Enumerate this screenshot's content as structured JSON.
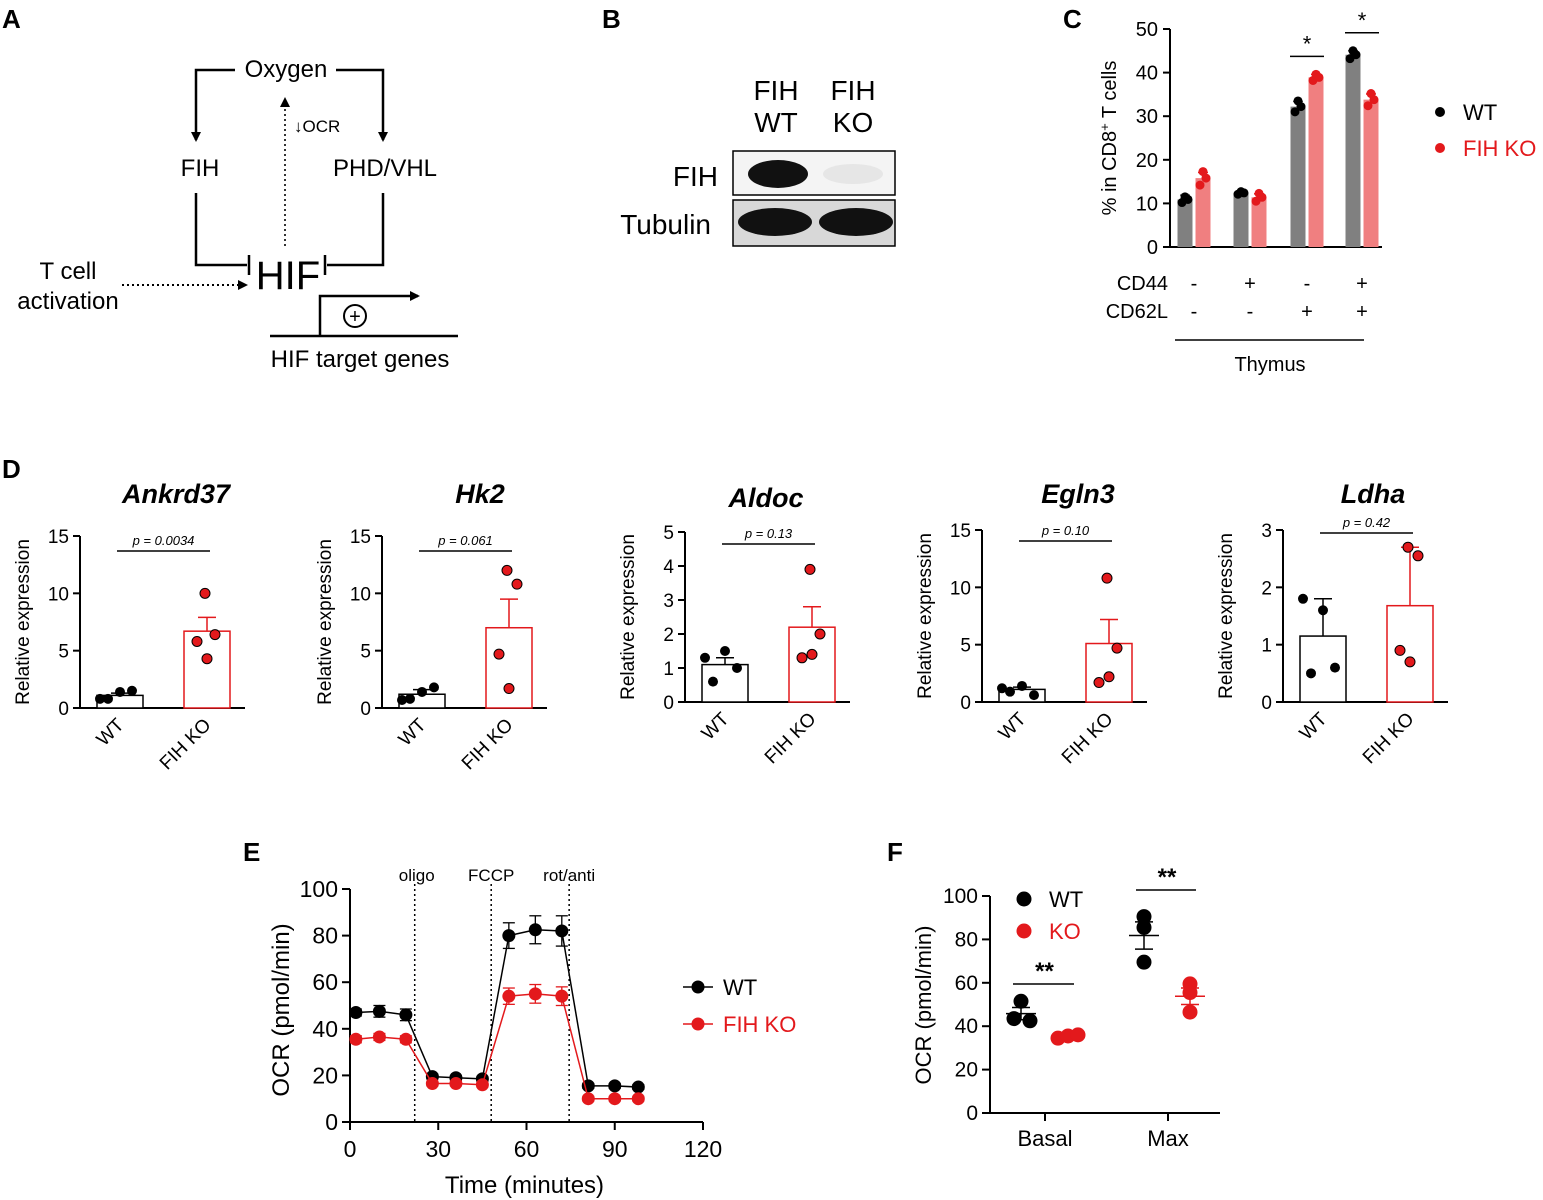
{
  "colors": {
    "wt": "#000000",
    "ko": "#e3191c",
    "wt_bar": "#808080",
    "ko_bar": "#f07f80",
    "axis": "#000000"
  },
  "panels": {
    "A": "A",
    "B": "B",
    "C": "C",
    "D": "D",
    "E": "E",
    "F": "F"
  },
  "diagram": {
    "oxygen": "Oxygen",
    "fih": "FIH",
    "phd": "PHD/VHL",
    "ocr": "↓OCR",
    "hif": "HIF",
    "tcell1": "T cell",
    "tcell2": "activation",
    "plus": "+",
    "targets": "HIF target genes"
  },
  "blot": {
    "fih_wt_1": "FIH",
    "fih_wt_2": "WT",
    "fih_ko_1": "FIH",
    "fih_ko_2": "KO",
    "row1": "FIH",
    "row2": "Tubulin"
  },
  "chart_data": [
    {
      "id": "C",
      "type": "bar",
      "ylabel_main": "% in CD8",
      "ylabel_sup": "+",
      "ylabel_end": " T cells",
      "ylim": [
        0,
        50
      ],
      "yticks": [
        "0",
        "10",
        "20",
        "30",
        "40",
        "50"
      ],
      "groups": [
        {
          "cd44": "-",
          "cd62l": "-",
          "wt": 10.9,
          "ko": 15.8,
          "wt_err": 1.0,
          "ko_err": 1.3,
          "wt_pts": [
            10.2,
            11.5,
            10.9
          ],
          "ko_pts": [
            14.2,
            17.3,
            15.8
          ],
          "sig": ""
        },
        {
          "cd44": "+",
          "cd62l": "-",
          "wt": 12.4,
          "ko": 11.4,
          "wt_err": 0.3,
          "ko_err": 0.8,
          "wt_pts": [
            12.1,
            12.7,
            12.4
          ],
          "ko_pts": [
            10.5,
            12.3,
            11.4
          ],
          "sig": ""
        },
        {
          "cd44": "-",
          "cd62l": "+",
          "wt": 32.2,
          "ko": 38.9,
          "wt_err": 1.2,
          "ko_err": 0.7,
          "wt_pts": [
            31.0,
            33.5,
            32.2
          ],
          "ko_pts": [
            38.2,
            39.6,
            38.9
          ],
          "sig": "*"
        },
        {
          "cd44": "+",
          "cd62l": "+",
          "wt": 44.1,
          "ko": 33.8,
          "wt_err": 0.9,
          "ko_err": 1.3,
          "wt_pts": [
            43.2,
            45.0,
            44.1
          ],
          "ko_pts": [
            32.4,
            35.2,
            33.8
          ],
          "sig": "*"
        }
      ],
      "row1_label": "CD44",
      "row2_label": "CD62L",
      "group_label": "Thymus",
      "legend": [
        {
          "name": "WT"
        },
        {
          "name": "FIH KO"
        }
      ]
    },
    {
      "id": "D",
      "type": "bar",
      "ylabel": "Relative expression",
      "categories": [
        "WT",
        "FIH KO"
      ],
      "genes": [
        {
          "name": "Ankrd37",
          "p": "p = 0.0034",
          "ylim": [
            0,
            15
          ],
          "yticks": [
            "0",
            "5",
            "10",
            "15"
          ],
          "wt": 1.1,
          "wt_err": 0.2,
          "wt_pts": [
            0.8,
            1.4,
            1.5,
            0.8
          ],
          "ko": 6.7,
          "ko_err": 1.2,
          "ko_pts": [
            10.0,
            6.4,
            5.8,
            4.3
          ]
        },
        {
          "name": "Hk2",
          "p": "p = 0.061",
          "ylim": [
            0,
            15
          ],
          "yticks": [
            "0",
            "5",
            "10",
            "15"
          ],
          "wt": 1.2,
          "wt_err": 0.4,
          "wt_pts": [
            0.7,
            1.4,
            1.8,
            0.8
          ],
          "ko": 7.0,
          "ko_err": 2.5,
          "ko_pts": [
            12.0,
            10.8,
            4.7,
            1.7
          ]
        },
        {
          "name": "Aldoc",
          "p": "p = 0.13",
          "ylim": [
            0,
            5
          ],
          "yticks": [
            "0",
            "1",
            "2",
            "3",
            "4",
            "5"
          ],
          "wt": 1.1,
          "wt_err": 0.2,
          "wt_pts": [
            1.3,
            1.5,
            1.0,
            0.6
          ],
          "ko": 2.2,
          "ko_err": 0.6,
          "ko_pts": [
            3.9,
            2.0,
            1.3,
            1.4
          ]
        },
        {
          "name": "Egln3",
          "p": "p = 0.10",
          "ylim": [
            0,
            15
          ],
          "yticks": [
            "0",
            "5",
            "10",
            "15"
          ],
          "wt": 1.1,
          "wt_err": 0.2,
          "wt_pts": [
            1.2,
            1.4,
            0.6,
            0.9
          ],
          "ko": 5.1,
          "ko_err": 2.1,
          "ko_pts": [
            10.8,
            4.7,
            1.7,
            2.2
          ]
        },
        {
          "name": "Ldha",
          "p": "p = 0.42",
          "ylim": [
            0,
            3
          ],
          "yticks": [
            "0",
            "1",
            "2",
            "3"
          ],
          "wt": 1.15,
          "wt_err": 0.65,
          "wt_pts": [
            1.8,
            1.6,
            0.6,
            0.5
          ],
          "ko": 1.68,
          "ko_err": 1.02,
          "ko_pts": [
            2.7,
            2.55,
            0.9,
            0.7
          ]
        }
      ]
    },
    {
      "id": "E",
      "type": "line",
      "xlabel": "Time (minutes)",
      "ylabel": "OCR (pmol/min)",
      "xlim": [
        0,
        120
      ],
      "ylim": [
        0,
        100
      ],
      "xticks": [
        "0",
        "30",
        "60",
        "90",
        "120"
      ],
      "yticks": [
        "0",
        "20",
        "40",
        "60",
        "80",
        "100"
      ],
      "x": [
        2,
        10,
        19,
        28,
        36,
        45,
        54,
        63,
        72,
        81,
        90,
        98
      ],
      "series": [
        {
          "name": "WT",
          "values": [
            47,
            47.5,
            46,
            19.5,
            19,
            18.5,
            80,
            82.5,
            82,
            15.5,
            15.5,
            15
          ],
          "errors": [
            1.5,
            2.5,
            2.5,
            1,
            1,
            1,
            5.5,
            6,
            6.5,
            1,
            1,
            1
          ]
        },
        {
          "name": "FIH KO",
          "values": [
            35.5,
            36.5,
            35.5,
            16.5,
            16.5,
            16,
            54,
            55,
            54,
            10,
            10,
            10
          ],
          "errors": [
            1.5,
            1.5,
            1.5,
            1,
            1,
            1,
            3.5,
            4,
            4,
            1,
            1,
            1
          ]
        }
      ],
      "markers": [
        {
          "x": 22,
          "label": "oligo"
        },
        {
          "x": 48,
          "label": "FCCP"
        },
        {
          "x": 74.5,
          "label": "rot/anti"
        }
      ],
      "legend": [
        {
          "name": "WT"
        },
        {
          "name": "FIH KO"
        }
      ]
    },
    {
      "id": "F",
      "type": "scatter",
      "ylabel": "OCR (pmol/min)",
      "ylim": [
        0,
        100
      ],
      "yticks": [
        "0",
        "20",
        "40",
        "60",
        "80",
        "100"
      ],
      "categories": [
        "Basal",
        "Max"
      ],
      "groups": [
        {
          "category": "Basal",
          "wt_pts": [
            51.5,
            43.5,
            42.5
          ],
          "ko_pts": [
            34.5,
            35.5,
            36
          ],
          "wt_mean": 45.8,
          "wt_err": 2.8,
          "ko_mean": 35.3,
          "ko_err": 0.5,
          "sig": "**"
        },
        {
          "category": "Max",
          "wt_pts": [
            90.5,
            85.5,
            69.5
          ],
          "ko_pts": [
            59.5,
            55.5,
            46.5
          ],
          "wt_mean": 81.8,
          "wt_err": 6.3,
          "ko_mean": 53.8,
          "ko_err": 3.8,
          "sig": "**"
        }
      ],
      "legend": [
        {
          "name": "WT"
        },
        {
          "name": "KO"
        }
      ]
    }
  ]
}
